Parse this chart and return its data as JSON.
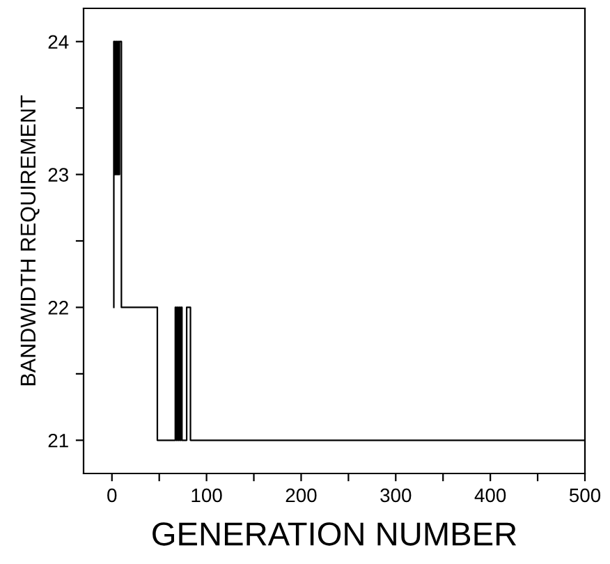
{
  "chart_data": {
    "type": "step",
    "xlabel": "GENERATION NUMBER",
    "ylabel": "BANDWIDTH REQUIREMENT",
    "series": [
      {
        "color": "#000000",
        "x": [
          2,
          2,
          3,
          4,
          5,
          6,
          7,
          8,
          10,
          48,
          67,
          68,
          69,
          70,
          71,
          72,
          73,
          74,
          79,
          83,
          500
        ],
        "values": [
          22,
          24,
          23,
          24,
          23,
          24,
          23,
          24,
          22,
          21,
          22,
          21,
          22,
          21,
          22,
          21,
          22,
          21,
          22,
          21,
          21
        ]
      }
    ],
    "xlim": [
      -30,
      500
    ],
    "ylim": [
      20.75,
      24.25
    ],
    "xticks": [
      0,
      {
        "value": 50,
        "label": null
      },
      100,
      {
        "value": 150,
        "label": null
      },
      200,
      {
        "value": 250,
        "label": null
      },
      300,
      {
        "value": 350,
        "label": null
      },
      400,
      {
        "value": 450,
        "label": null
      },
      500
    ],
    "yticks": [
      21,
      {
        "value": 21.5,
        "label": null
      },
      22,
      {
        "value": 22.5,
        "label": null
      },
      23,
      {
        "value": 23.5,
        "label": null
      },
      24
    ],
    "grid": false,
    "marker": "none",
    "line_style": "solid"
  }
}
